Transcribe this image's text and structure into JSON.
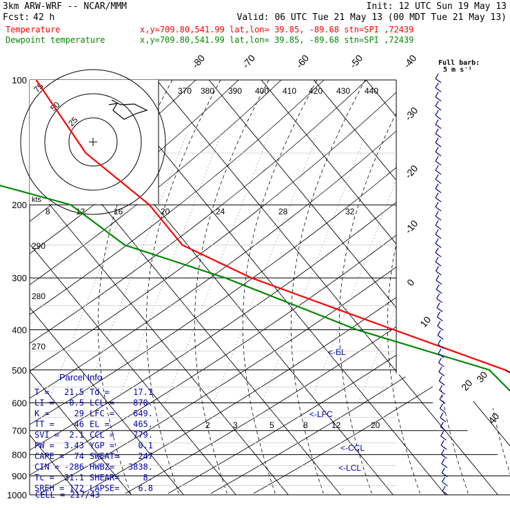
{
  "header": {
    "model": "3km ARW-WRF -- NCAR/MMM",
    "init": "Init: 12 UTC Sun 19 May 13",
    "fcst_label": "Fcst:",
    "fcst_value": "42 h",
    "valid": "Valid: 06 UTC Tue 21 May 13 (00 MDT Tue 21 May 13)",
    "temp_label": "Temperature",
    "temp_info": "x,y=709.80,541.99   lat,lon= 39.85, -89.68  stn=SPI ,72439",
    "dew_label": "Dewpoint temperature",
    "dew_info": "x,y=709.80,541.99   lat,lon= 39.85, -89.68  stn=SPI ,72439",
    "full_barb_1": "Full barb:",
    "full_barb_2": "5 m s⁻¹",
    "colors": {
      "temperature": "#ff0000",
      "dewpoint": "#008800",
      "label": "#0000aa"
    }
  },
  "chart_data": {
    "type": "line",
    "skew_t": true,
    "pressure_labels": [
      "100",
      "200",
      "300",
      "400",
      "500",
      "600",
      "700",
      "800",
      "900",
      "1000"
    ],
    "pressure_levels": [
      100,
      200,
      300,
      400,
      500,
      600,
      700,
      800,
      900,
      1000
    ],
    "pressure_log_scale": true,
    "isotherm_labels": [
      "-80",
      "-70",
      "-60",
      "-50",
      "-40",
      "-30",
      "-20",
      "-10",
      "0",
      "10",
      "20",
      "30",
      "40"
    ],
    "isotherm_values": [
      -80,
      -70,
      -60,
      -50,
      -40,
      -30,
      -20,
      -10,
      0,
      10,
      20,
      30,
      40
    ],
    "theta_e_labels": [
      "370",
      "380",
      "390",
      "400",
      "410",
      "420",
      "430",
      "440"
    ],
    "dry_adiabat_labels": [
      "290",
      "280",
      "270"
    ],
    "mixing_ratio_labels_upper": [
      "8",
      "12",
      "16",
      "20",
      "24",
      "28",
      "32"
    ],
    "mixing_ratio_labels_lower": [
      "2",
      "3",
      "5",
      "8",
      "12",
      "20"
    ],
    "level_markers": [
      "EL",
      "LFC",
      "CCL",
      "LCL"
    ],
    "series": [
      {
        "name": "Temperature",
        "points": [
          [
            100,
            -53
          ],
          [
            150,
            -55
          ],
          [
            200,
            -51
          ],
          [
            250,
            -51
          ],
          [
            300,
            -43
          ],
          [
            400,
            -24
          ],
          [
            500,
            -9
          ],
          [
            600,
            -3
          ],
          [
            700,
            6
          ],
          [
            800,
            14
          ],
          [
            900,
            21
          ],
          [
            975,
            21.5
          ]
        ]
      },
      {
        "name": "Dewpoint temperature",
        "points": [
          [
            100,
            -61
          ],
          [
            150,
            -74
          ],
          [
            175,
            -79
          ],
          [
            200,
            -66
          ],
          [
            250,
            -62
          ],
          [
            300,
            -48
          ],
          [
            400,
            -31
          ],
          [
            500,
            -12
          ],
          [
            600,
            -11
          ],
          [
            700,
            0
          ],
          [
            850,
            10.5
          ],
          [
            925,
            14
          ],
          [
            975,
            17.1
          ]
        ]
      }
    ],
    "hodograph": {
      "rings_label": "kts",
      "ring_labels": [
        "75",
        "50",
        "25"
      ]
    }
  },
  "parcel_info": {
    "title": "Parcel Info",
    "rows": [
      [
        "T  =",
        "21.5",
        "Td =",
        "17.1"
      ],
      [
        "LI =",
        "-0.5",
        "LCL =",
        "870."
      ],
      [
        "K  =",
        "29",
        "LFC =",
        "649."
      ],
      [
        "TT =",
        "46",
        "EL  =",
        "465."
      ],
      [
        "SVI =",
        "2.1",
        "CCL =",
        "779."
      ],
      [
        "PW =",
        "3.43",
        "YGP =",
        "0.1"
      ],
      [
        "CAPE =",
        "74",
        "SWEAT=",
        "247"
      ],
      [
        "CIN =",
        "-286",
        "HWBZ=",
        "3838."
      ],
      [
        "Tc =",
        "31.1",
        "SHEAR=",
        "8."
      ],
      [
        "SREH =",
        "172",
        "LAPSE=",
        "6.8"
      ]
    ],
    "cell": "CELL = 217/43"
  }
}
